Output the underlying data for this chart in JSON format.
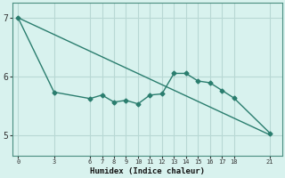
{
  "xlabel": "Humidex (Indice chaleur)",
  "background_color": "#d8f2ee",
  "grid_color": "#b8d8d4",
  "line_color": "#2a7d6e",
  "x_ticks": [
    0,
    3,
    6,
    7,
    8,
    9,
    10,
    11,
    12,
    13,
    14,
    15,
    16,
    17,
    18,
    21
  ],
  "ylim": [
    4.65,
    7.25
  ],
  "yticks": [
    5,
    6,
    7
  ],
  "xlim": [
    -0.5,
    22.0
  ],
  "line1_x": [
    0,
    3,
    6,
    7,
    8,
    9,
    10,
    11,
    12,
    13,
    14,
    15,
    16,
    17,
    18,
    21
  ],
  "line1_y": [
    7.0,
    5.73,
    5.62,
    5.68,
    5.56,
    5.59,
    5.53,
    5.68,
    5.7,
    6.05,
    6.05,
    5.92,
    5.89,
    5.76,
    5.63,
    5.03
  ],
  "line2_x": [
    0,
    21
  ],
  "line2_y": [
    7.0,
    5.0
  ]
}
